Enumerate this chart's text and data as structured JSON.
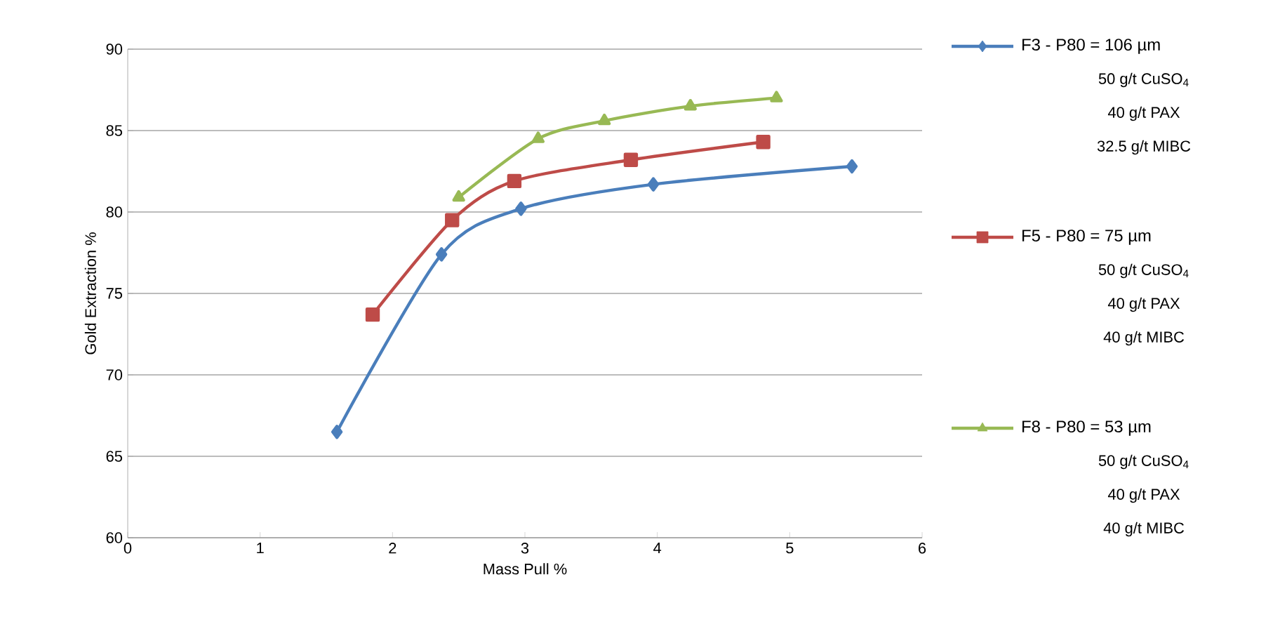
{
  "chart_data": {
    "type": "line",
    "xlabel": "Mass Pull %",
    "ylabel": "Gold Extraction %",
    "xlim": [
      0,
      6
    ],
    "xticks": [
      0,
      1,
      2,
      3,
      4,
      5,
      6
    ],
    "ylim": [
      60,
      90
    ],
    "yticks": [
      60,
      65,
      70,
      75,
      80,
      85,
      90
    ],
    "grid": "y",
    "legend": "right",
    "line_style": "solid",
    "series": [
      {
        "name": "F3 - P80 = 106 µm",
        "color": "#4a7ebb",
        "marker": "diamond",
        "x": [
          1.58,
          2.37,
          2.97,
          3.97,
          5.47
        ],
        "values": [
          66.5,
          77.4,
          80.2,
          81.7,
          82.8
        ]
      },
      {
        "name": "F5 - P80 = 75 µm",
        "color": "#be4b48",
        "marker": "square",
        "x": [
          1.85,
          2.45,
          2.92,
          3.8,
          4.8
        ],
        "values": [
          73.7,
          79.5,
          81.9,
          83.2,
          84.3
        ]
      },
      {
        "name": "F8 - P80 = 53 µm",
        "color": "#98b954",
        "marker": "triangle",
        "x": [
          2.5,
          3.1,
          3.6,
          4.25,
          4.9
        ],
        "values": [
          80.9,
          84.5,
          85.6,
          86.5,
          87.0
        ]
      }
    ],
    "annotations": [
      "50 g/t CuSO$_{4}$",
      "40 g/t PAX",
      "32.5 g/t MIBC",
      "50 g/t CuSO$_{4}$",
      "40 g/t PAX",
      "40 g/t MIBC",
      "50 g/t CuSO$_{4}$",
      "40 g/t PAX",
      "40 g/t MIBC"
    ]
  }
}
